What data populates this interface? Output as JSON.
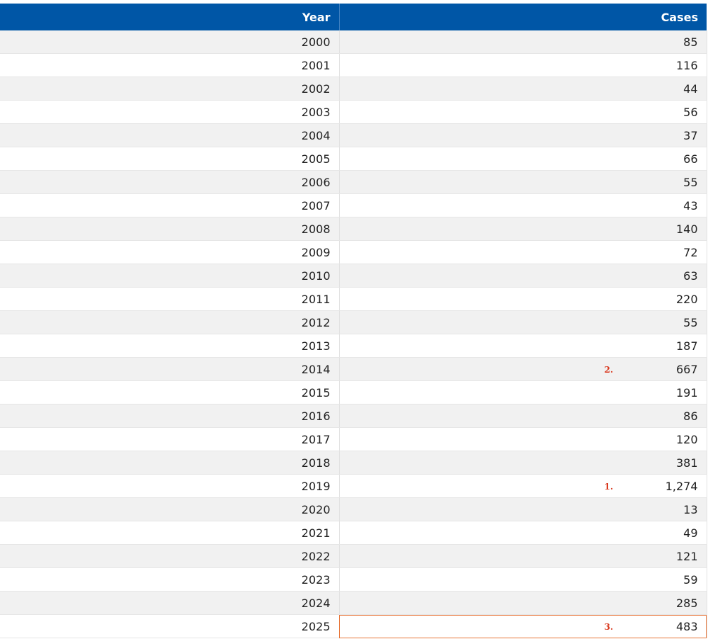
{
  "table": {
    "headers": {
      "year": "Year",
      "cases": "Cases"
    },
    "rows": [
      {
        "year": "2000",
        "cases": "85",
        "marker": ""
      },
      {
        "year": "2001",
        "cases": "116",
        "marker": ""
      },
      {
        "year": "2002",
        "cases": "44",
        "marker": ""
      },
      {
        "year": "2003",
        "cases": "56",
        "marker": ""
      },
      {
        "year": "2004",
        "cases": "37",
        "marker": ""
      },
      {
        "year": "2005",
        "cases": "66",
        "marker": ""
      },
      {
        "year": "2006",
        "cases": "55",
        "marker": ""
      },
      {
        "year": "2007",
        "cases": "43",
        "marker": ""
      },
      {
        "year": "2008",
        "cases": "140",
        "marker": ""
      },
      {
        "year": "2009",
        "cases": "72",
        "marker": ""
      },
      {
        "year": "2010",
        "cases": "63",
        "marker": ""
      },
      {
        "year": "2011",
        "cases": "220",
        "marker": ""
      },
      {
        "year": "2012",
        "cases": "55",
        "marker": ""
      },
      {
        "year": "2013",
        "cases": "187",
        "marker": ""
      },
      {
        "year": "2014",
        "cases": "667",
        "marker": "2."
      },
      {
        "year": "2015",
        "cases": "191",
        "marker": ""
      },
      {
        "year": "2016",
        "cases": "86",
        "marker": ""
      },
      {
        "year": "2017",
        "cases": "120",
        "marker": ""
      },
      {
        "year": "2018",
        "cases": "381",
        "marker": ""
      },
      {
        "year": "2019",
        "cases": "1,274",
        "marker": "1."
      },
      {
        "year": "2020",
        "cases": "13",
        "marker": ""
      },
      {
        "year": "2021",
        "cases": "49",
        "marker": ""
      },
      {
        "year": "2022",
        "cases": "121",
        "marker": ""
      },
      {
        "year": "2023",
        "cases": "59",
        "marker": ""
      },
      {
        "year": "2024",
        "cases": "285",
        "marker": ""
      },
      {
        "year": "2025",
        "cases": "483",
        "marker": "3."
      }
    ],
    "selected_row_index": 25
  },
  "colors": {
    "header_bg": "#0056a6",
    "selection_outline": "#e8763a",
    "marker": "#d9381e"
  }
}
